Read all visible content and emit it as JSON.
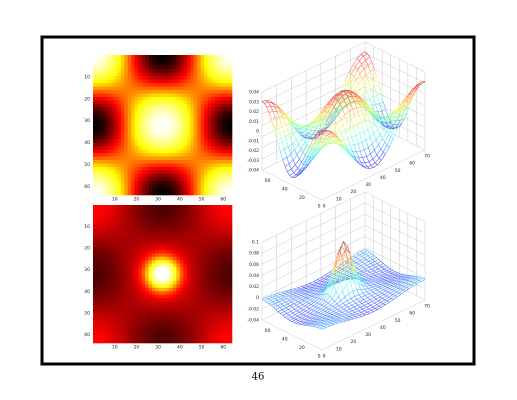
{
  "figure": {
    "heatmap_top": {
      "x_ticks": [
        10,
        20,
        30,
        40,
        50,
        60
      ],
      "y_ticks": [
        10,
        20,
        30,
        40,
        50,
        60
      ]
    },
    "surface_top": {
      "z_ticks": [
        0.04,
        0.03,
        0.02,
        0.01,
        0,
        -0.01,
        -0.02,
        -0.03,
        -0.04
      ],
      "x_ticks": [
        0,
        10,
        20,
        30,
        40,
        50,
        60,
        70
      ],
      "y_ticks": [
        0,
        20,
        40,
        60
      ]
    },
    "heatmap_bottom": {
      "x_ticks": [
        10,
        20,
        30,
        40,
        50,
        60
      ],
      "y_ticks": [
        10,
        20,
        30,
        40,
        50,
        60
      ]
    },
    "surface_bottom": {
      "z_ticks": [
        0.1,
        0.08,
        0.06,
        0.04,
        0.02,
        0,
        -0.02,
        -0.04
      ],
      "x_ticks": [
        0,
        10,
        20,
        30,
        40,
        50,
        60,
        70
      ],
      "y_ticks": [
        0,
        20,
        40,
        60
      ]
    }
  },
  "page_number": "46"
}
